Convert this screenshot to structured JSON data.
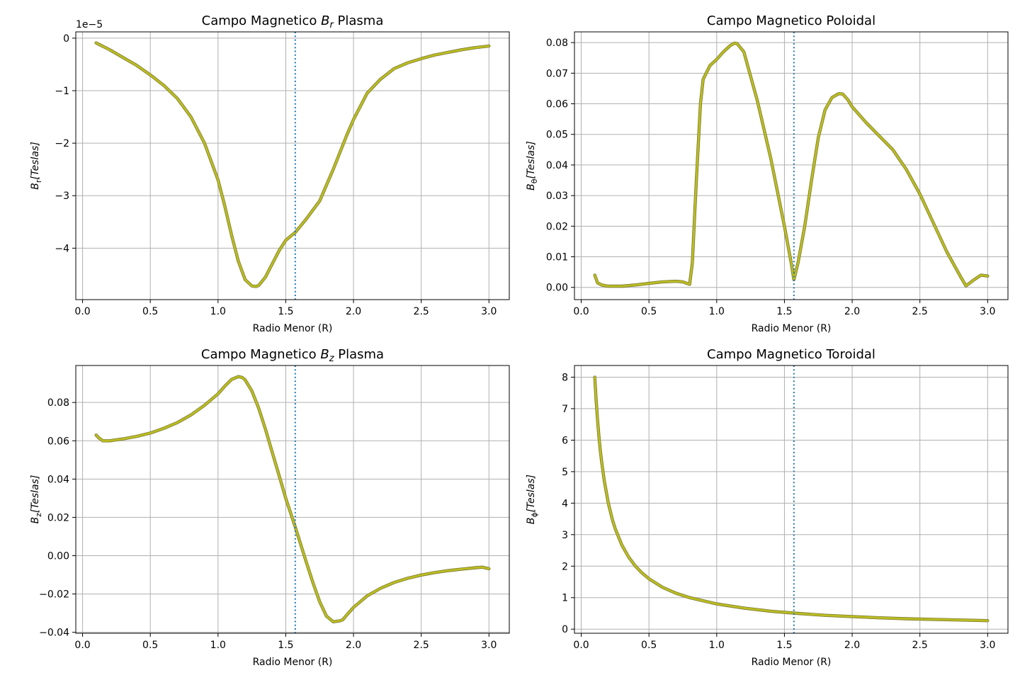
{
  "chart_data": [
    {
      "type": "line",
      "title_main": "Campo Magnetico ",
      "title_sym": "B",
      "title_sub": "r",
      "title_after": " Plasma",
      "xlabel": "Radio Menor (R)",
      "ylabel_sym": "B",
      "ylabel_sub": "r",
      "ylabel_unit": "[Teslas]",
      "offset_text": "1e−5",
      "xlim": [
        -0.05,
        3.15
      ],
      "ylim": [
        -4.98,
        0.12
      ],
      "xticks": [
        0.0,
        0.5,
        1.0,
        1.5,
        2.0,
        2.5,
        3.0
      ],
      "xtick_labels": [
        "0.0",
        "0.5",
        "1.0",
        "1.5",
        "2.0",
        "2.5",
        "3.0"
      ],
      "yticks": [
        0,
        -1,
        -2,
        -3,
        -4
      ],
      "ytick_labels": [
        "0",
        "−1",
        "−2",
        "−3",
        "−4"
      ],
      "grid": true,
      "vline_x": 1.57,
      "series": [
        {
          "color": "#bcbd22",
          "x": [
            0.1,
            0.2,
            0.3,
            0.4,
            0.5,
            0.6,
            0.7,
            0.8,
            0.9,
            1.0,
            1.05,
            1.1,
            1.15,
            1.2,
            1.25,
            1.28,
            1.3,
            1.35,
            1.4,
            1.45,
            1.5,
            1.57,
            1.65,
            1.75,
            1.85,
            1.95,
            2.0,
            2.1,
            2.2,
            2.3,
            2.4,
            2.5,
            2.6,
            2.7,
            2.8,
            2.9,
            3.0
          ],
          "y": [
            -0.09,
            -0.22,
            -0.37,
            -0.52,
            -0.7,
            -0.9,
            -1.15,
            -1.5,
            -2.0,
            -2.7,
            -3.2,
            -3.75,
            -4.25,
            -4.6,
            -4.72,
            -4.73,
            -4.71,
            -4.55,
            -4.3,
            -4.05,
            -3.85,
            -3.7,
            -3.45,
            -3.1,
            -2.5,
            -1.85,
            -1.55,
            -1.05,
            -0.78,
            -0.58,
            -0.47,
            -0.39,
            -0.32,
            -0.27,
            -0.22,
            -0.18,
            -0.15
          ]
        }
      ]
    },
    {
      "type": "line",
      "title_main": "Campo Magnetico Poloidal",
      "title_sym": "",
      "title_sub": "",
      "title_after": "",
      "xlabel": "Radio Menor (R)",
      "ylabel_sym": "B",
      "ylabel_sub": "θ",
      "ylabel_unit": "[Teslas]",
      "offset_text": "",
      "xlim": [
        -0.05,
        3.15
      ],
      "ylim": [
        -0.004,
        0.0835
      ],
      "xticks": [
        0.0,
        0.5,
        1.0,
        1.5,
        2.0,
        2.5,
        3.0
      ],
      "xtick_labels": [
        "0.0",
        "0.5",
        "1.0",
        "1.5",
        "2.0",
        "2.5",
        "3.0"
      ],
      "yticks": [
        0.0,
        0.01,
        0.02,
        0.03,
        0.04,
        0.05,
        0.06,
        0.07,
        0.08
      ],
      "ytick_labels": [
        "0.00",
        "0.01",
        "0.02",
        "0.03",
        "0.04",
        "0.05",
        "0.06",
        "0.07",
        "0.08"
      ],
      "grid": true,
      "vline_x": 1.57,
      "series": [
        {
          "color": "#bcbd22",
          "x": [
            0.1,
            0.12,
            0.15,
            0.2,
            0.3,
            0.4,
            0.5,
            0.6,
            0.7,
            0.75,
            0.8,
            0.82,
            0.85,
            0.88,
            0.9,
            0.95,
            1.0,
            1.05,
            1.1,
            1.13,
            1.15,
            1.2,
            1.3,
            1.4,
            1.5,
            1.55,
            1.57,
            1.6,
            1.65,
            1.7,
            1.75,
            1.8,
            1.85,
            1.9,
            1.93,
            1.97,
            2.0,
            2.1,
            2.2,
            2.3,
            2.4,
            2.5,
            2.6,
            2.7,
            2.8,
            2.84,
            2.9,
            2.95,
            3.0
          ],
          "y": [
            0.004,
            0.0015,
            0.0008,
            0.0004,
            0.0004,
            0.0008,
            0.0013,
            0.0018,
            0.002,
            0.0018,
            0.001,
            0.008,
            0.035,
            0.06,
            0.068,
            0.0725,
            0.0745,
            0.077,
            0.079,
            0.0798,
            0.0797,
            0.077,
            0.061,
            0.042,
            0.02,
            0.008,
            0.0025,
            0.008,
            0.02,
            0.035,
            0.049,
            0.058,
            0.062,
            0.0633,
            0.0632,
            0.0612,
            0.059,
            0.054,
            0.0495,
            0.045,
            0.0385,
            0.0305,
            0.021,
            0.0115,
            0.0035,
            0.0005,
            0.0025,
            0.004,
            0.0037
          ]
        }
      ]
    },
    {
      "type": "line",
      "title_main": "Campo Magnetico ",
      "title_sym": "B",
      "title_sub": "z",
      "title_after": " Plasma",
      "xlabel": "Radio Menor (R)",
      "ylabel_sym": "B",
      "ylabel_sub": "z",
      "ylabel_unit": "[Teslas]",
      "offset_text": "",
      "xlim": [
        -0.05,
        3.15
      ],
      "ylim": [
        -0.0405,
        0.0993
      ],
      "xticks": [
        0.0,
        0.5,
        1.0,
        1.5,
        2.0,
        2.5,
        3.0
      ],
      "xtick_labels": [
        "0.0",
        "0.5",
        "1.0",
        "1.5",
        "2.0",
        "2.5",
        "3.0"
      ],
      "yticks": [
        -0.04,
        -0.02,
        0.0,
        0.02,
        0.04,
        0.06,
        0.08
      ],
      "ytick_labels": [
        "−0.04",
        "−0.02",
        "0.00",
        "0.02",
        "0.04",
        "0.06",
        "0.08"
      ],
      "grid": true,
      "vline_x": 1.57,
      "series": [
        {
          "color": "#bcbd22",
          "x": [
            0.1,
            0.12,
            0.15,
            0.2,
            0.3,
            0.4,
            0.5,
            0.6,
            0.7,
            0.8,
            0.9,
            1.0,
            1.05,
            1.1,
            1.15,
            1.18,
            1.2,
            1.25,
            1.3,
            1.35,
            1.4,
            1.45,
            1.5,
            1.57,
            1.65,
            1.7,
            1.75,
            1.8,
            1.85,
            1.9,
            1.92,
            1.95,
            2.0,
            2.1,
            2.2,
            2.3,
            2.4,
            2.5,
            2.6,
            2.7,
            2.8,
            2.9,
            2.95,
            3.0
          ],
          "y": [
            0.063,
            0.0615,
            0.06,
            0.06,
            0.061,
            0.0623,
            0.064,
            0.0665,
            0.0695,
            0.0735,
            0.0785,
            0.0845,
            0.0885,
            0.092,
            0.0935,
            0.093,
            0.0918,
            0.086,
            0.077,
            0.066,
            0.054,
            0.042,
            0.03,
            0.015,
            -0.003,
            -0.014,
            -0.024,
            -0.0315,
            -0.0345,
            -0.034,
            -0.0335,
            -0.031,
            -0.027,
            -0.021,
            -0.017,
            -0.014,
            -0.0118,
            -0.0101,
            -0.0088,
            -0.0078,
            -0.007,
            -0.0063,
            -0.006,
            -0.0068
          ]
        }
      ]
    },
    {
      "type": "line",
      "title_main": "Campo Magnetico Toroidal",
      "title_sym": "",
      "title_sub": "",
      "title_after": "",
      "xlabel": "Radio Menor (R)",
      "ylabel_sym": "B",
      "ylabel_sub": "ϕ",
      "ylabel_unit": "[Teslas]",
      "offset_text": "",
      "xlim": [
        -0.05,
        3.15
      ],
      "ylim": [
        -0.13,
        8.37
      ],
      "xticks": [
        0.0,
        0.5,
        1.0,
        1.5,
        2.0,
        2.5,
        3.0
      ],
      "xtick_labels": [
        "0.0",
        "0.5",
        "1.0",
        "1.5",
        "2.0",
        "2.5",
        "3.0"
      ],
      "yticks": [
        0,
        1,
        2,
        3,
        4,
        5,
        6,
        7,
        8
      ],
      "ytick_labels": [
        "0",
        "1",
        "2",
        "3",
        "4",
        "5",
        "6",
        "7",
        "8"
      ],
      "grid": true,
      "vline_x": 1.57,
      "series": [
        {
          "color": "#bcbd22",
          "x": [
            0.1,
            0.11,
            0.12,
            0.13,
            0.14,
            0.15,
            0.17,
            0.2,
            0.23,
            0.25,
            0.3,
            0.35,
            0.4,
            0.45,
            0.5,
            0.6,
            0.7,
            0.8,
            1.0,
            1.2,
            1.4,
            1.6,
            1.8,
            2.0,
            2.2,
            2.4,
            2.6,
            2.8,
            3.0
          ],
          "y": [
            8.0,
            7.27,
            6.67,
            6.15,
            5.71,
            5.33,
            4.71,
            4.0,
            3.48,
            3.2,
            2.67,
            2.29,
            2.0,
            1.78,
            1.6,
            1.33,
            1.14,
            1.0,
            0.8,
            0.67,
            0.57,
            0.5,
            0.44,
            0.4,
            0.36,
            0.33,
            0.31,
            0.29,
            0.27
          ]
        }
      ]
    }
  ]
}
